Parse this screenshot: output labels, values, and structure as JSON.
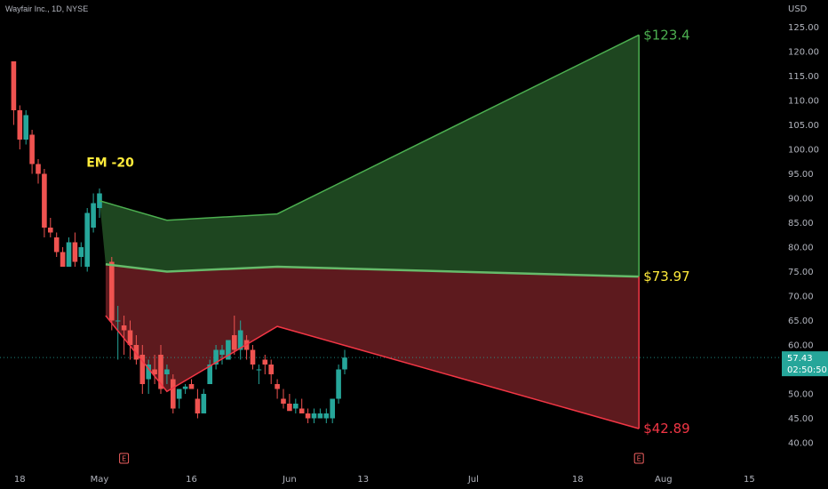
{
  "symbol_line": "Wayfair Inc., 1D, NYSE",
  "chart_data": {
    "type": "candlestick",
    "currency": "USD",
    "ylim": [
      36,
      128
    ],
    "y_ticks": [
      "125.00",
      "120.00",
      "115.00",
      "110.00",
      "105.00",
      "100.00",
      "95.00",
      "90.00",
      "85.00",
      "80.00",
      "75.00",
      "70.00",
      "65.00",
      "60.00",
      "55.00",
      "50.00",
      "45.00",
      "40.00"
    ],
    "x_ticks": [
      {
        "label": "18",
        "day": -13
      },
      {
        "label": "May",
        "day": 0
      },
      {
        "label": "16",
        "day": 15
      },
      {
        "label": "Jun",
        "day": 31
      },
      {
        "label": "13",
        "day": 43
      },
      {
        "label": "Jul",
        "day": 61
      },
      {
        "label": "18",
        "day": 78
      },
      {
        "label": "Aug",
        "day": 92
      },
      {
        "label": "15",
        "day": 106
      }
    ],
    "candles": [
      {
        "d": -14,
        "o": 118,
        "h": 118,
        "l": 105,
        "c": 108
      },
      {
        "d": -13,
        "o": 108,
        "h": 109,
        "l": 100,
        "c": 102
      },
      {
        "d": -12,
        "o": 102,
        "h": 108,
        "l": 101,
        "c": 107
      },
      {
        "d": -11,
        "o": 103,
        "h": 104,
        "l": 95,
        "c": 97
      },
      {
        "d": -10,
        "o": 97,
        "h": 98,
        "l": 93,
        "c": 95
      },
      {
        "d": -9,
        "o": 95,
        "h": 96,
        "l": 82,
        "c": 84
      },
      {
        "d": -8,
        "o": 84,
        "h": 86,
        "l": 82,
        "c": 83
      },
      {
        "d": -7,
        "o": 82,
        "h": 83,
        "l": 78,
        "c": 79
      },
      {
        "d": -6,
        "o": 79,
        "h": 80,
        "l": 76,
        "c": 76
      },
      {
        "d": -5,
        "o": 76,
        "h": 82,
        "l": 76,
        "c": 81
      },
      {
        "d": -4,
        "o": 81,
        "h": 83,
        "l": 76,
        "c": 77
      },
      {
        "d": -3,
        "o": 78,
        "h": 81,
        "l": 76,
        "c": 80
      },
      {
        "d": -2,
        "o": 76,
        "h": 88,
        "l": 75,
        "c": 87
      },
      {
        "d": -1,
        "o": 84,
        "h": 91,
        "l": 83,
        "c": 89
      },
      {
        "d": 0,
        "o": 88,
        "h": 92,
        "l": 86,
        "c": 91
      },
      {
        "d": 2,
        "o": 77,
        "h": 78,
        "l": 63,
        "c": 65
      },
      {
        "d": 3,
        "o": 65,
        "h": 68,
        "l": 57,
        "c": 65
      },
      {
        "d": 4,
        "o": 64,
        "h": 66,
        "l": 58,
        "c": 63
      },
      {
        "d": 5,
        "o": 63,
        "h": 65,
        "l": 57,
        "c": 60
      },
      {
        "d": 6,
        "o": 60,
        "h": 62,
        "l": 56,
        "c": 57
      },
      {
        "d": 7,
        "o": 58,
        "h": 60,
        "l": 50,
        "c": 52
      },
      {
        "d": 8,
        "o": 53,
        "h": 57,
        "l": 50,
        "c": 56
      },
      {
        "d": 9,
        "o": 55,
        "h": 58,
        "l": 52,
        "c": 54
      },
      {
        "d": 10,
        "o": 58,
        "h": 60,
        "l": 50,
        "c": 51
      },
      {
        "d": 11,
        "o": 54,
        "h": 56,
        "l": 52,
        "c": 55
      },
      {
        "d": 12,
        "o": 53,
        "h": 54,
        "l": 46,
        "c": 47
      },
      {
        "d": 13,
        "o": 49,
        "h": 51,
        "l": 47,
        "c": 51
      },
      {
        "d": 14,
        "o": 51,
        "h": 52,
        "l": 50,
        "c": 51.5
      },
      {
        "d": 15,
        "o": 52,
        "h": 53,
        "l": 51,
        "c": 51
      },
      {
        "d": 16,
        "o": 49,
        "h": 51,
        "l": 45,
        "c": 46
      },
      {
        "d": 17,
        "o": 46,
        "h": 51,
        "l": 46,
        "c": 50
      },
      {
        "d": 18,
        "o": 52,
        "h": 57,
        "l": 52,
        "c": 56
      },
      {
        "d": 19,
        "o": 56,
        "h": 60,
        "l": 55,
        "c": 59
      },
      {
        "d": 20,
        "o": 58,
        "h": 60,
        "l": 56,
        "c": 59
      },
      {
        "d": 21,
        "o": 57,
        "h": 61,
        "l": 57,
        "c": 61
      },
      {
        "d": 22,
        "o": 62,
        "h": 66,
        "l": 58,
        "c": 59
      },
      {
        "d": 23,
        "o": 59,
        "h": 65,
        "l": 57,
        "c": 63
      },
      {
        "d": 24,
        "o": 61,
        "h": 62,
        "l": 57,
        "c": 59
      },
      {
        "d": 25,
        "o": 59,
        "h": 60,
        "l": 55,
        "c": 56
      },
      {
        "d": 26,
        "o": 55,
        "h": 56,
        "l": 52,
        "c": 55
      },
      {
        "d": 27,
        "o": 57,
        "h": 58,
        "l": 54,
        "c": 56
      },
      {
        "d": 28,
        "o": 56,
        "h": 57,
        "l": 52,
        "c": 54
      },
      {
        "d": 29,
        "o": 52,
        "h": 53,
        "l": 49,
        "c": 51
      },
      {
        "d": 30,
        "o": 49,
        "h": 51,
        "l": 47,
        "c": 48
      },
      {
        "d": 31,
        "o": 48,
        "h": 50,
        "l": 47,
        "c": 46.5
      },
      {
        "d": 32,
        "o": 47,
        "h": 49,
        "l": 46,
        "c": 48
      },
      {
        "d": 33,
        "o": 47,
        "h": 49,
        "l": 46,
        "c": 46
      },
      {
        "d": 34,
        "o": 46,
        "h": 47,
        "l": 44,
        "c": 45
      },
      {
        "d": 35,
        "o": 45,
        "h": 47,
        "l": 44,
        "c": 46
      },
      {
        "d": 36,
        "o": 45,
        "h": 47,
        "l": 45,
        "c": 46
      },
      {
        "d": 37,
        "o": 45,
        "h": 47,
        "l": 44,
        "c": 46
      },
      {
        "d": 38,
        "o": 45,
        "h": 49,
        "l": 44,
        "c": 49
      },
      {
        "d": 39,
        "o": 49,
        "h": 56,
        "l": 48,
        "c": 55
      },
      {
        "d": 40,
        "o": 55,
        "h": 59,
        "l": 54,
        "c": 57.43
      }
    ],
    "upper_line": [
      {
        "d": 0,
        "v": 89.5
      },
      {
        "d": 11,
        "v": 85.5
      },
      {
        "d": 29,
        "v": 86.8
      },
      {
        "d": 88,
        "v": 123.4
      }
    ],
    "mid_line": [
      {
        "d": 1,
        "v": 76.5
      },
      {
        "d": 11,
        "v": 75
      },
      {
        "d": 29,
        "v": 76
      },
      {
        "d": 88,
        "v": 73.97
      }
    ],
    "lower_line": [
      {
        "d": 1,
        "v": 66
      },
      {
        "d": 11,
        "v": 50.5
      },
      {
        "d": 29,
        "v": 63.8
      },
      {
        "d": 88,
        "v": 42.89
      }
    ],
    "last_price": 57.43,
    "price_countdown": "02:50:50",
    "level_labels": {
      "upper": "$123.4",
      "mid": "$73.97",
      "lower": "$42.89"
    },
    "annotation": "EM -20",
    "earnings_marker": "E",
    "earnings_days": [
      4,
      88
    ],
    "colors": {
      "up": "#26a69a",
      "down": "#ef5350",
      "upper_zone": "#1e4620",
      "lower_zone": "#5d1a1e",
      "upper_stroke": "#4caf50",
      "lower_stroke": "#f23645",
      "mid_stroke": "#66bb6a",
      "upper_label": "#4caf50",
      "mid_label": "#ffeb3b",
      "lower_label": "#f23645",
      "price_tag": "#26a69a"
    }
  }
}
